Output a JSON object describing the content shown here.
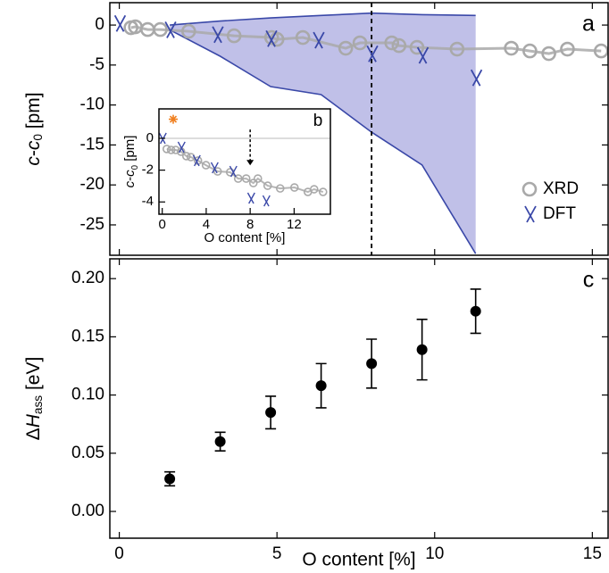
{
  "chart_data": [
    {
      "type": "line",
      "label": "a",
      "ylabel": [
        "c",
        "-",
        "c",
        "0",
        " [pm]"
      ],
      "xlim": [
        -0.3,
        15.5
      ],
      "ylim": [
        -28.8,
        2.8
      ],
      "yticks": [
        0,
        -5,
        -10,
        -15,
        -20,
        -25
      ],
      "vline": 8,
      "legend": "lower right",
      "band": {
        "color": "#b9b9e6",
        "edge": "#3a48a8",
        "x": [
          1.6,
          3.2,
          4.8,
          6.4,
          8.0,
          9.6,
          11.3
        ],
        "upper": [
          0,
          0.5,
          0.9,
          1.2,
          1.5,
          1.3,
          1.2
        ],
        "lower": [
          -0.6,
          -3.9,
          -7.7,
          -8.7,
          -13.4,
          -17.5,
          -28.6
        ]
      },
      "series": [
        {
          "name": "XRD",
          "color": "#a9a9a9",
          "marker": "circle",
          "x": [
            0.37,
            0.51,
            0.9,
            1.3,
            2.2,
            3.64,
            4.83,
            5.0,
            5.82,
            7.18,
            7.63,
            8.64,
            8.87,
            9.44,
            10.71,
            12.43,
            13.02,
            13.62,
            14.21,
            15.28
          ],
          "values": [
            -0.33,
            -0.22,
            -0.56,
            -0.56,
            -0.78,
            -1.34,
            -1.56,
            -1.79,
            -1.56,
            -2.9,
            -2.23,
            -2.23,
            -2.57,
            -2.79,
            -3.01,
            -2.9,
            -3.24,
            -3.57,
            -3.01,
            -3.24
          ]
        },
        {
          "name": "DFT",
          "color": "#3a48a8",
          "marker": "x",
          "x": [
            0,
            1.6,
            3.1,
            4.8,
            6.3,
            8.0,
            9.6,
            11.3
          ],
          "values": [
            0.2,
            -0.6,
            -1.2,
            -1.7,
            -1.9,
            -3.6,
            -3.8,
            -6.6
          ]
        }
      ]
    },
    {
      "type": "line",
      "label": "b",
      "xlabel": "O content [%]",
      "ylabel": [
        "c",
        "-",
        "c",
        "0",
        " [pm]"
      ],
      "xlim": [
        -0.3,
        15.3
      ],
      "ylim": [
        -4.77,
        1.85
      ],
      "xticks": [
        0,
        4,
        8,
        12
      ],
      "yticks": [
        0,
        -2,
        -4
      ],
      "hline": 0,
      "arrow": {
        "x": 8,
        "from": 0.55,
        "to": -1.7
      },
      "highlight": {
        "x": 1.0,
        "y": 1.2,
        "color": "#f08020"
      },
      "series": [
        {
          "name": "XRD",
          "color": "#a9a9a9",
          "marker": "circle",
          "x": [
            0.41,
            0.81,
            1.22,
            1.71,
            2.2,
            2.6,
            3.25,
            3.98,
            5.04,
            6.18,
            6.91,
            7.64,
            8.29,
            8.7,
            9.59,
            10.73,
            12.03,
            13.25,
            13.82,
            14.63
          ],
          "values": [
            -0.67,
            -0.73,
            -0.73,
            -0.84,
            -1.12,
            -1.18,
            -1.4,
            -1.69,
            -2.08,
            -2.13,
            -2.53,
            -2.53,
            -2.81,
            -2.53,
            -2.98,
            -3.15,
            -3.09,
            -3.37,
            -3.2,
            -3.37
          ]
        },
        {
          "name": "DFT",
          "color": "#3a48a8",
          "marker": "x",
          "x": [
            0,
            1.71,
            3.09,
            4.72,
            6.42,
            8.05,
            9.43
          ],
          "values": [
            0,
            -0.56,
            -1.4,
            -1.85,
            -2.08,
            -3.76,
            -3.93
          ]
        }
      ]
    },
    {
      "type": "errorbar",
      "label": "c",
      "xlabel": "O content [%]",
      "ylabel": [
        "Δ",
        "H",
        "ass",
        " [eV]"
      ],
      "xlim": [
        -0.3,
        15.5
      ],
      "ylim": [
        -0.023,
        0.217
      ],
      "xticks": [
        0,
        5,
        10,
        15
      ],
      "yticks": [
        {
          "value": 0,
          "label": "0.00"
        },
        {
          "value": 0.05,
          "label": "0.05"
        },
        {
          "value": 0.1,
          "label": "0.10"
        },
        {
          "value": 0.15,
          "label": "0.15"
        },
        {
          "value": 0.2,
          "label": "0.20"
        }
      ],
      "color": "#000000",
      "x": [
        1.6,
        3.2,
        4.8,
        6.4,
        8.0,
        9.6,
        11.3
      ],
      "values": [
        0.028,
        0.06,
        0.085,
        0.108,
        0.127,
        0.139,
        0.172
      ],
      "errors": [
        0.006,
        0.008,
        0.014,
        0.019,
        0.021,
        0.026,
        0.019
      ]
    }
  ]
}
